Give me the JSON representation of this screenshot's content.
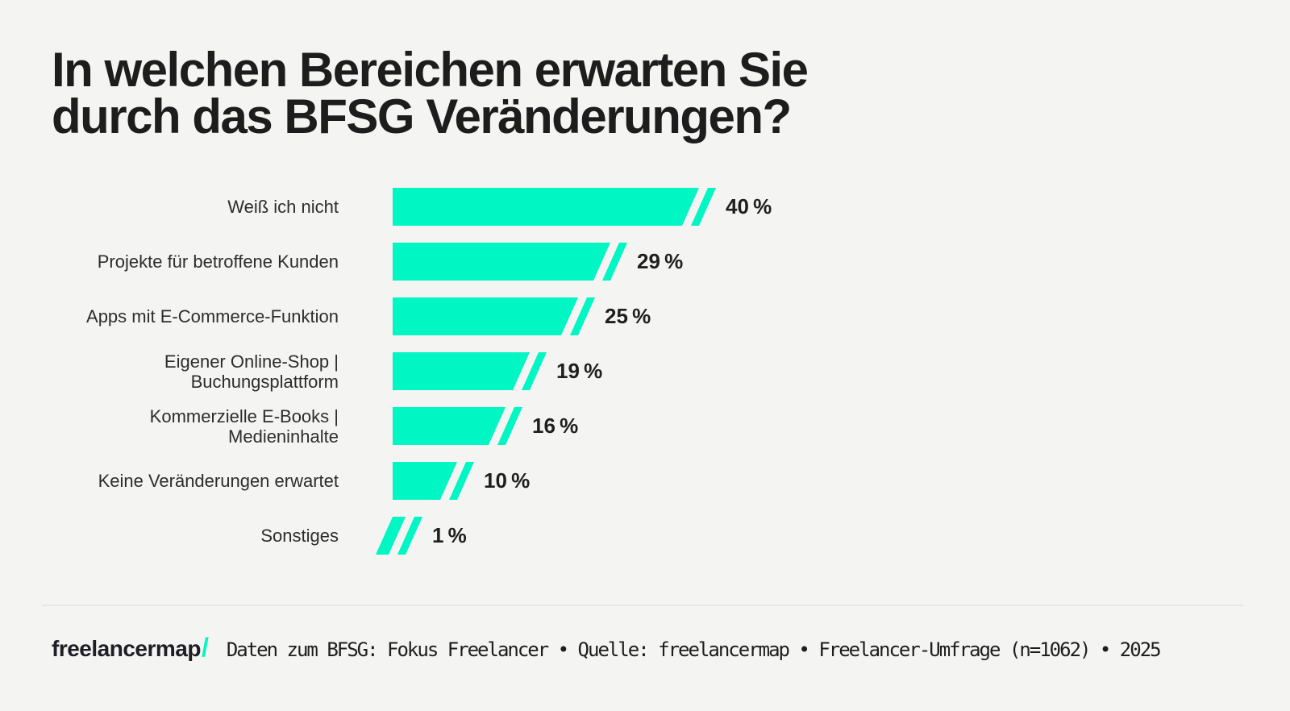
{
  "colors": {
    "background": "#F4F4F2",
    "accent": "#00F6C3",
    "title_text": "#1D1D1D",
    "label_text": "#2D2D2D",
    "value_text": "#1F1F1F",
    "footer_text": "#1E1E1E",
    "divider": "#E6E6E3"
  },
  "header": {
    "title": "In welchen Bereichen erwarten Sie durch das BFSG Veränderungen?",
    "title_lines": [
      "In welchen Bereichen erwarten Sie",
      "durch das BFSG Veränderungen?"
    ]
  },
  "chart_data": {
    "type": "bar",
    "orientation": "horizontal",
    "title": "In welchen Bereichen erwarten Sie durch das BFSG Veränderungen?",
    "categories": [
      "Weiß ich nicht",
      "Projekte für betroffene Kunden",
      "Apps mit E-Commerce-Funktion",
      "Eigener Online-Shop |\nBuchungsplattform",
      "Kommerzielle E-Books |\nMedieninhalte",
      "Keine Veränderungen erwartet",
      "Sonstiges"
    ],
    "values": [
      40,
      29,
      25,
      19,
      16,
      10,
      1
    ],
    "value_labels": [
      "40 %",
      "29 %",
      "25 %",
      "19 %",
      "16 %",
      "10 %",
      "1 %"
    ],
    "unit": "%",
    "xlim": [
      0,
      40
    ],
    "bar_color": "#00F6C3",
    "grid": false,
    "legend": false,
    "value_label_position": "end-of-bar"
  },
  "footer": {
    "logo_text": "freelancermap",
    "logo_slash": "/",
    "source_text": "Daten zum BFSG: Fokus Freelancer • Quelle: freelancermap • Freelancer-Umfrage (n=1062) • 2025"
  }
}
